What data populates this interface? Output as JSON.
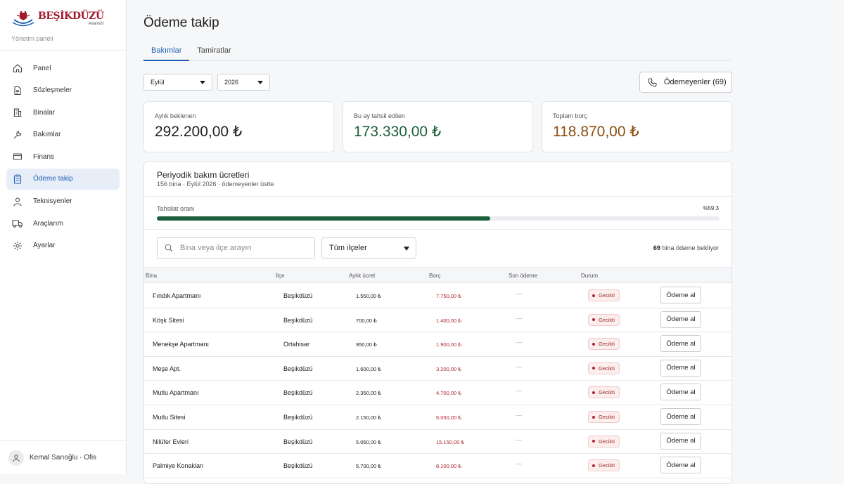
{
  "brand": {
    "name": "BEŞİKDÜZÜ",
    "sub": "Asansör",
    "caption": "Yönetim paneli"
  },
  "sidebar": {
    "items": [
      {
        "label": "Panel",
        "icon": "home-icon",
        "active": false
      },
      {
        "label": "Sözleşmeler",
        "icon": "document-icon",
        "active": false
      },
      {
        "label": "Binalar",
        "icon": "building-icon",
        "active": false
      },
      {
        "label": "Bakımlar",
        "icon": "wrench-icon",
        "active": false
      },
      {
        "label": "Finans",
        "icon": "credit-card-icon",
        "active": false
      },
      {
        "label": "Ödeme takip",
        "icon": "clipboard-icon",
        "active": true
      },
      {
        "label": "Teknisyenler",
        "icon": "person-icon",
        "active": false
      },
      {
        "label": "Araçlarım",
        "icon": "truck-icon",
        "active": false
      },
      {
        "label": "Ayarlar",
        "icon": "gear-icon",
        "active": false
      }
    ],
    "user": "Kemal Sarıoğlu · Ofis"
  },
  "page": {
    "title": "Ödeme takip"
  },
  "tabs": [
    {
      "label": "Bakımlar",
      "active": true
    },
    {
      "label": "Tamiratlar",
      "active": false
    }
  ],
  "filters": {
    "month": "Eylül",
    "year": "2026"
  },
  "unpaid_button": "Ödemeyenler (69)",
  "stats": [
    {
      "label": "Aylık beklenen",
      "value": "292.200,00 ₺",
      "color": "#222222"
    },
    {
      "label": "Bu ay tahsil edilen",
      "value": "173.330,00 ₺",
      "color": "#1b5e3b"
    },
    {
      "label": "Toplam borç",
      "value": "118.870,00 ₺",
      "color": "#8a4d0f"
    }
  ],
  "panel": {
    "title": "Periyodik bakım ücretleri",
    "subtitle": "156 bina · Eylül 2026 · ödemeyenler üstte",
    "rate_label": "Tahsilat oranı",
    "rate_text": "%59.3",
    "rate_value": 0.593,
    "search_placeholder": "Bina veya ilçe arayın",
    "district_filter": "Tüm ilçeler",
    "pending_count": "69",
    "pending_text": "bina ödeme bekliyor"
  },
  "table": {
    "headers": [
      "Bina",
      "İlçe",
      "Aylık ücret",
      "Borç",
      "Son ödeme",
      "Durum"
    ],
    "rows": [
      {
        "name": "Fındık Apartmanı",
        "district": "Beşikdüzü",
        "fee": "1.550,00 ₺",
        "debt": "7.750,00 ₺",
        "last": "—",
        "status": "Gecikti",
        "action": "Ödeme al"
      },
      {
        "name": "Köşk Sitesi",
        "district": "Beşikdüzü",
        "fee": "700,00 ₺",
        "debt": "1.400,00 ₺",
        "last": "—",
        "status": "Gecikti",
        "action": "Ödeme al"
      },
      {
        "name": "Menekşe Apartmanı",
        "district": "Ortahisar",
        "fee": "950,00 ₺",
        "debt": "1.900,00 ₺",
        "last": "—",
        "status": "Gecikti",
        "action": "Ödeme al"
      },
      {
        "name": "Meşe Apt.",
        "district": "Beşikdüzü",
        "fee": "1.600,00 ₺",
        "debt": "3.200,00 ₺",
        "last": "—",
        "status": "Gecikti",
        "action": "Ödeme al"
      },
      {
        "name": "Mutlu Apartmanı",
        "district": "Beşikdüzü",
        "fee": "2.350,00 ₺",
        "debt": "4.700,00 ₺",
        "last": "—",
        "status": "Gecikti",
        "action": "Ödeme al"
      },
      {
        "name": "Mutlu Sitesi",
        "district": "Beşikdüzü",
        "fee": "2.150,00 ₺",
        "debt": "5.050,00 ₺",
        "last": "—",
        "status": "Gecikti",
        "action": "Ödeme al"
      },
      {
        "name": "Nilüfer Evleri",
        "district": "Beşikdüzü",
        "fee": "5.050,00 ₺",
        "debt": "15.150,00 ₺",
        "last": "—",
        "status": "Gecikti",
        "action": "Ödeme al"
      },
      {
        "name": "Palmiye Konakları",
        "district": "Beşikdüzü",
        "fee": "5.700,00 ₺",
        "debt": "8.100,00 ₺",
        "last": "—",
        "status": "Gecikti",
        "action": "Ödeme al"
      }
    ]
  }
}
